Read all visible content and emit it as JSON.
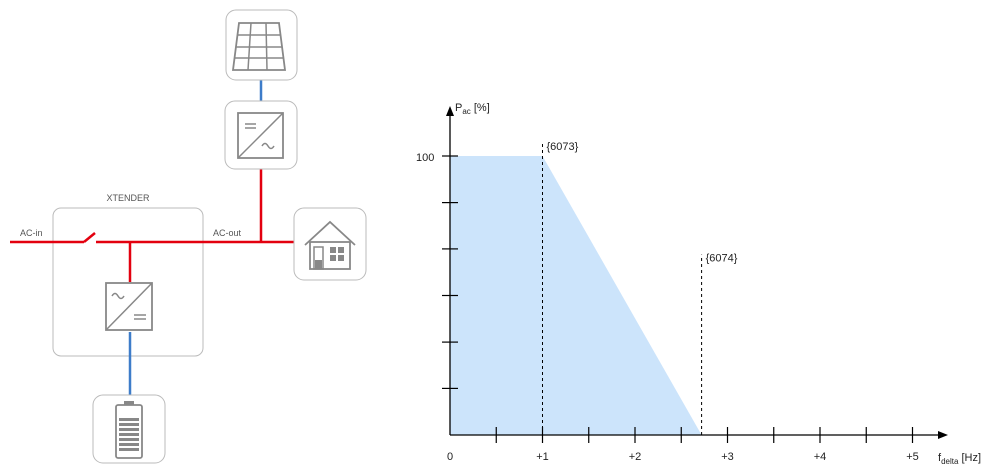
{
  "diagram": {
    "xtender_label": "XTENDER",
    "ac_in_label": "AC-in",
    "ac_out_label": "AC-out",
    "colors": {
      "ac_line": "#e3000f",
      "dc_line": "#3d7cc9",
      "box_border": "#bbbbbb",
      "icon": "#888888"
    },
    "icons": [
      "solar-panel-icon",
      "mppt-converter-icon",
      "house-icon",
      "inverter-icon",
      "battery-icon",
      "switch-icon"
    ]
  },
  "chart_data": {
    "type": "area",
    "ylabel_main": "P",
    "ylabel_sub": "ac",
    "ylabel_unit": " [%]",
    "xlabel_main": "f",
    "xlabel_sub": "delta",
    "xlabel_unit": " [Hz]",
    "y_tick_label": "100",
    "x_tick_labels": [
      "0",
      "+1",
      "+2",
      "+3",
      "+4",
      "+5"
    ],
    "x_tick_values": [
      0,
      1,
      2,
      3,
      4,
      5
    ],
    "xlim": [
      0,
      5.35
    ],
    "ylim": [
      0,
      100
    ],
    "y_minor_ticks": [
      16.7,
      33.3,
      50,
      66.7,
      83.3
    ],
    "x": [
      0,
      1,
      2.72
    ],
    "y": [
      100,
      100,
      0
    ],
    "fill_color": "#cce4fb",
    "markers": [
      {
        "label": "{6073}",
        "x": 1,
        "height": 100
      },
      {
        "label": "{6074}",
        "x": 2.72,
        "height": 60
      }
    ]
  }
}
